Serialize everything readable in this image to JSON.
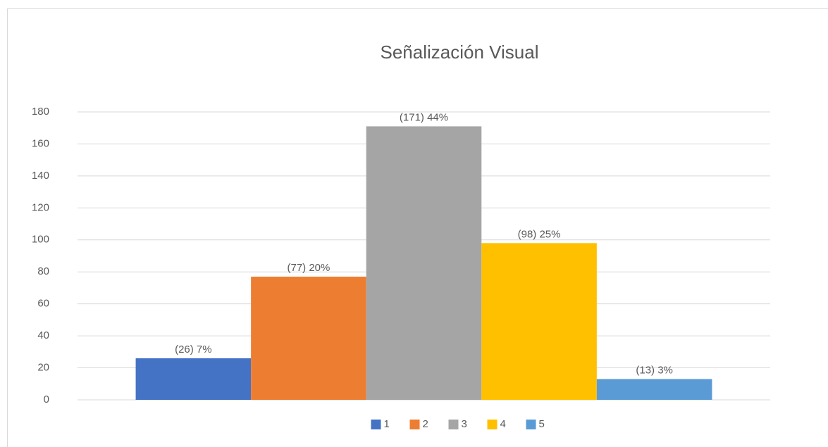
{
  "chart_data": {
    "type": "bar",
    "title": "Señalización Visual",
    "categories": [
      null
    ],
    "series": [
      {
        "name": "1",
        "color": "#4472c4",
        "values": [
          26
        ],
        "value_labels": [
          "(26) 7%"
        ]
      },
      {
        "name": "2",
        "color": "#ed7d31",
        "values": [
          77
        ],
        "value_labels": [
          "(77) 20%"
        ]
      },
      {
        "name": "3",
        "color": "#a5a5a5",
        "values": [
          171
        ],
        "value_labels": [
          "(171) 44%"
        ]
      },
      {
        "name": "4",
        "color": "#ffc000",
        "values": [
          98
        ],
        "value_labels": [
          "(98) 25%"
        ]
      },
      {
        "name": "5",
        "color": "#5b9bd5",
        "values": [
          13
        ],
        "value_labels": [
          "(13) 3%"
        ]
      }
    ],
    "ylim": [
      0,
      180
    ],
    "yticks": [
      0,
      20,
      40,
      60,
      80,
      100,
      120,
      140,
      160,
      180
    ],
    "grid": true,
    "legend": "bottom"
  }
}
